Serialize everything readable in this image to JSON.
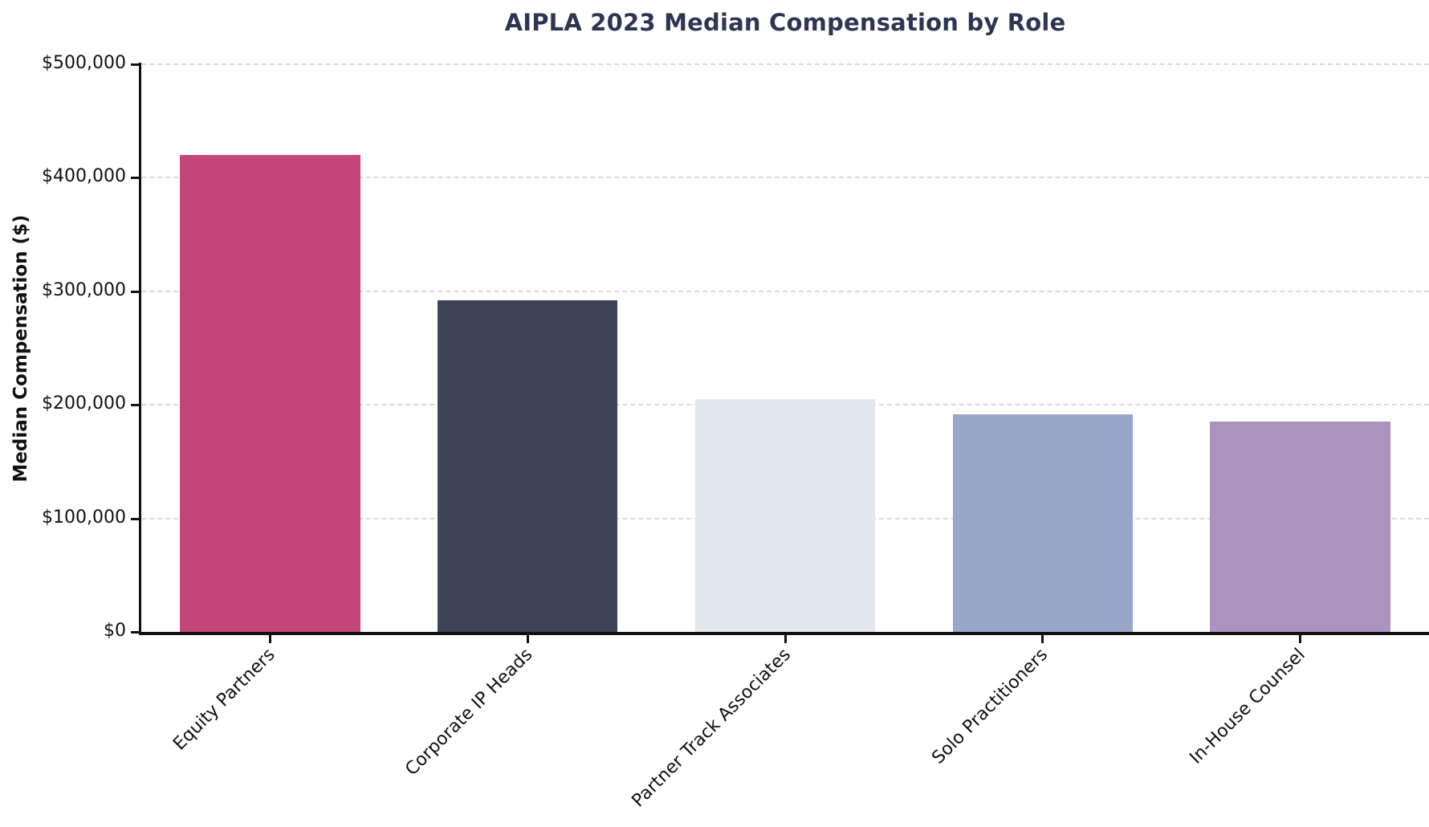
{
  "chart_data": {
    "type": "bar",
    "title": "AIPLA 2023 Median Compensation by Role",
    "title_color": "#2d3553",
    "xlabel": "",
    "ylabel": "Median Compensation ($)",
    "categories": [
      "Equity Partners",
      "Corporate IP Heads",
      "Partner Track Associates",
      "Solo Practitioners",
      "In-House Counsel"
    ],
    "values": [
      420000,
      292000,
      205000,
      192000,
      185000
    ],
    "bar_colors": [
      "#c4477b",
      "#3e4458",
      "#e3e7f0",
      "#97a6c9",
      "#aa93bd"
    ],
    "ylim": [
      0,
      500000
    ],
    "ytick_step": 100000,
    "ytick_labels": [
      "$0",
      "$100,000",
      "$200,000",
      "$300,000",
      "$400,000",
      "$500,000"
    ],
    "grid": "horizontal-dashed",
    "grid_color": "#dcdcdc",
    "legend": "none"
  }
}
